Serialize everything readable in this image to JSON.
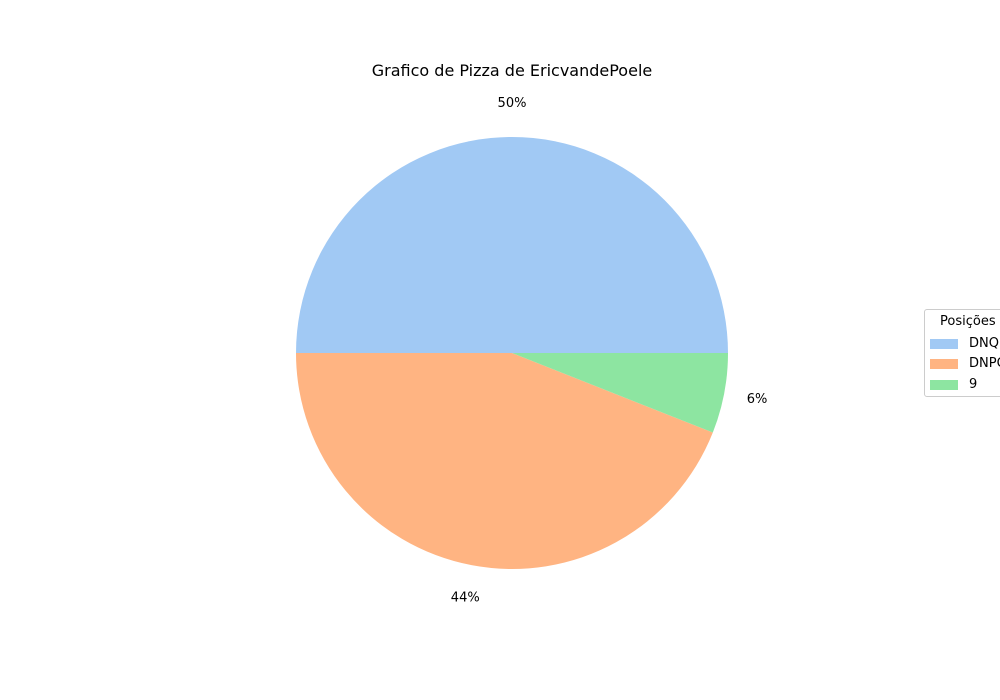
{
  "chart_data": {
    "type": "pie",
    "title": "Grafico de Pizza de EricvandePoele",
    "slices": [
      {
        "label": "DNQ",
        "value": 50,
        "pct_label": "50%",
        "color": "#a1c9f4"
      },
      {
        "label": "DNPQ",
        "value": 44,
        "pct_label": "44%",
        "color": "#ffb482"
      },
      {
        "label": "9",
        "value": 6,
        "pct_label": "6%",
        "color": "#8de5a1"
      }
    ],
    "start_angle_deg": 0,
    "direction": "counterclockwise",
    "legend": {
      "title": "Posições",
      "placement": "right"
    }
  }
}
